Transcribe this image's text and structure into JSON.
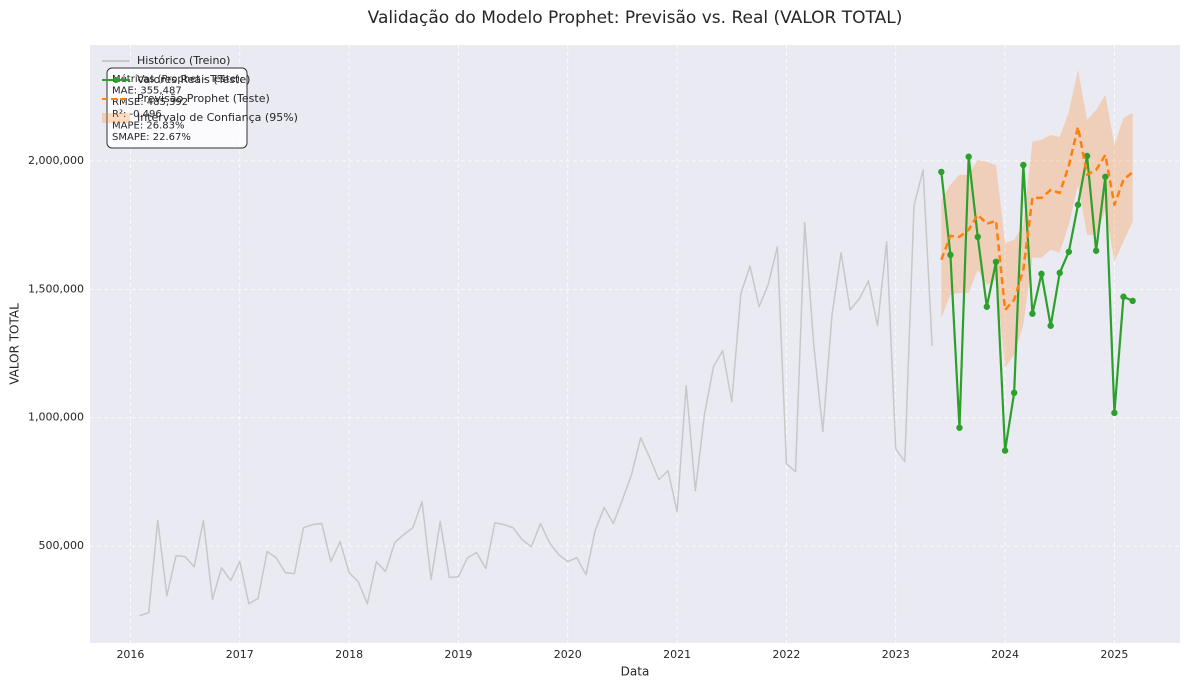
{
  "chart_data": {
    "type": "line",
    "title": "Validação do Modelo Prophet: Previsão vs. Real (VALOR TOTAL)",
    "xlabel": "Data",
    "ylabel": "VALOR TOTAL",
    "xlim": [
      2015.63,
      2025.6
    ],
    "ylim": [
      123000,
      2451000
    ],
    "xticks": [
      2016,
      2017,
      2018,
      2019,
      2020,
      2021,
      2022,
      2023,
      2024,
      2025
    ],
    "yticks": [
      {
        "value": 500000,
        "label": "500,000"
      },
      {
        "value": 1000000,
        "label": "1,000,000"
      },
      {
        "value": 1500000,
        "label": "1,500,000"
      },
      {
        "value": 2000000,
        "label": "2,000,000"
      }
    ],
    "grid": true,
    "legend": "upper left",
    "series": [
      {
        "name": "Histórico (Treino)",
        "color": "#c8c8c8",
        "style": "solid",
        "markers": false,
        "x": [
          2016.083,
          2016.167,
          2016.25,
          2016.333,
          2016.417,
          2016.5,
          2016.583,
          2016.667,
          2016.75,
          2016.833,
          2016.917,
          2017,
          2017.083,
          2017.167,
          2017.25,
          2017.333,
          2017.417,
          2017.5,
          2017.583,
          2017.667,
          2017.75,
          2017.833,
          2017.917,
          2018,
          2018.083,
          2018.167,
          2018.25,
          2018.333,
          2018.417,
          2018.5,
          2018.583,
          2018.667,
          2018.75,
          2018.833,
          2018.917,
          2019,
          2019.083,
          2019.167,
          2019.25,
          2019.333,
          2019.417,
          2019.5,
          2019.583,
          2019.667,
          2019.75,
          2019.833,
          2019.917,
          2020,
          2020.083,
          2020.167,
          2020.25,
          2020.333,
          2020.417,
          2020.5,
          2020.583,
          2020.667,
          2020.75,
          2020.833,
          2020.917,
          2021,
          2021.083,
          2021.167,
          2021.25,
          2021.333,
          2021.417,
          2021.5,
          2021.583,
          2021.667,
          2021.75,
          2021.833,
          2021.917,
          2022,
          2022.083,
          2022.167,
          2022.25,
          2022.333,
          2022.417,
          2022.5,
          2022.583,
          2022.667,
          2022.75,
          2022.833,
          2022.917,
          2023,
          2023.083,
          2023.167,
          2023.25,
          2023.333
        ],
        "values": [
          229000,
          241000,
          600000,
          307000,
          463000,
          459000,
          420000,
          600000,
          292000,
          416000,
          366000,
          440000,
          276000,
          296000,
          479000,
          455000,
          397000,
          393000,
          572000,
          584000,
          588000,
          440000,
          518000,
          397000,
          362000,
          276000,
          440000,
          401000,
          514000,
          545000,
          572000,
          673000,
          370000,
          596000,
          378000,
          381000,
          455000,
          475000,
          413000,
          591000,
          584000,
          572000,
          525000,
          498000,
          588000,
          514000,
          467000,
          440000,
          455000,
          389000,
          560000,
          650000,
          588000,
          681000,
          778000,
          922000,
          844000,
          759000,
          794000,
          634000,
          1125000,
          716000,
          1012000,
          1199000,
          1261000,
          1062000,
          1482000,
          1591000,
          1432000,
          1518000,
          1665000,
          821000,
          790000,
          1759000,
          1284000,
          946000,
          1401000,
          1642000,
          1420000,
          1463000,
          1533000,
          1358000,
          1685000,
          879000,
          829000,
          1825000,
          1965000,
          1280000
        ]
      },
      {
        "name": "Valores Reais (Teste)",
        "color": "#2ca02c",
        "style": "solid",
        "markers": true,
        "x": [
          2023.417,
          2023.5,
          2023.583,
          2023.667,
          2023.75,
          2023.833,
          2023.917,
          2024,
          2024.083,
          2024.167,
          2024.25,
          2024.333,
          2024.417,
          2024.5,
          2024.583,
          2024.667,
          2024.75,
          2024.833,
          2024.917,
          2025,
          2025.083,
          2025.167
        ],
        "values": [
          1957000,
          1634000,
          961000,
          2016000,
          1704000,
          1432000,
          1607000,
          872000,
          1097000,
          1984000,
          1405000,
          1560000,
          1358000,
          1564000,
          1646000,
          1829000,
          2019000,
          1650000,
          1938000,
          1019000,
          1471000,
          1455000
        ]
      },
      {
        "name": "Previsão Prophet (Teste)",
        "color": "#ff7f0e",
        "style": "dashed",
        "markers": false,
        "x": [
          2023.417,
          2023.5,
          2023.583,
          2023.667,
          2023.75,
          2023.833,
          2023.917,
          2024,
          2024.083,
          2024.167,
          2024.25,
          2024.333,
          2024.417,
          2024.5,
          2024.583,
          2024.667,
          2024.75,
          2024.833,
          2024.917,
          2025,
          2025.083,
          2025.167
        ],
        "values": [
          1615000,
          1708000,
          1704000,
          1732000,
          1790000,
          1755000,
          1767000,
          1420000,
          1459000,
          1576000,
          1856000,
          1856000,
          1887000,
          1875000,
          1981000,
          2132000,
          1946000,
          1965000,
          2023000,
          1829000,
          1926000,
          1957000
        ]
      }
    ],
    "band": {
      "name": "Intervalo de Confiança (95%)",
      "color": "#ff7f0e",
      "x": [
        2023.417,
        2023.5,
        2023.583,
        2023.667,
        2023.75,
        2023.833,
        2023.917,
        2024,
        2024.083,
        2024.167,
        2024.25,
        2024.333,
        2024.417,
        2024.5,
        2024.583,
        2024.667,
        2024.75,
        2024.833,
        2024.917,
        2025,
        2025.083,
        2025.167
      ],
      "lower": [
        1389000,
        1479000,
        1486000,
        1486000,
        1576000,
        1518000,
        1537000,
        1195000,
        1245000,
        1362000,
        1623000,
        1623000,
        1654000,
        1642000,
        1751000,
        1907000,
        1712000,
        1712000,
        1809000,
        1607000,
        1685000,
        1763000
      ],
      "upper": [
        1848000,
        1907000,
        1946000,
        1946000,
        2004000,
        1996000,
        1984000,
        1681000,
        1693000,
        1751000,
        2074000,
        2082000,
        2101000,
        2093000,
        2191000,
        2354000,
        2160000,
        2198000,
        2257000,
        2062000,
        2167000,
        2187000
      ]
    },
    "metrics": [
      "Métricas (Prophet - Teste):",
      "MAE: 355,487",
      "RMSE: 485,392",
      "R²: -0.496",
      "MAPE: 26.83%",
      "SMAPE: 22.67%"
    ]
  }
}
